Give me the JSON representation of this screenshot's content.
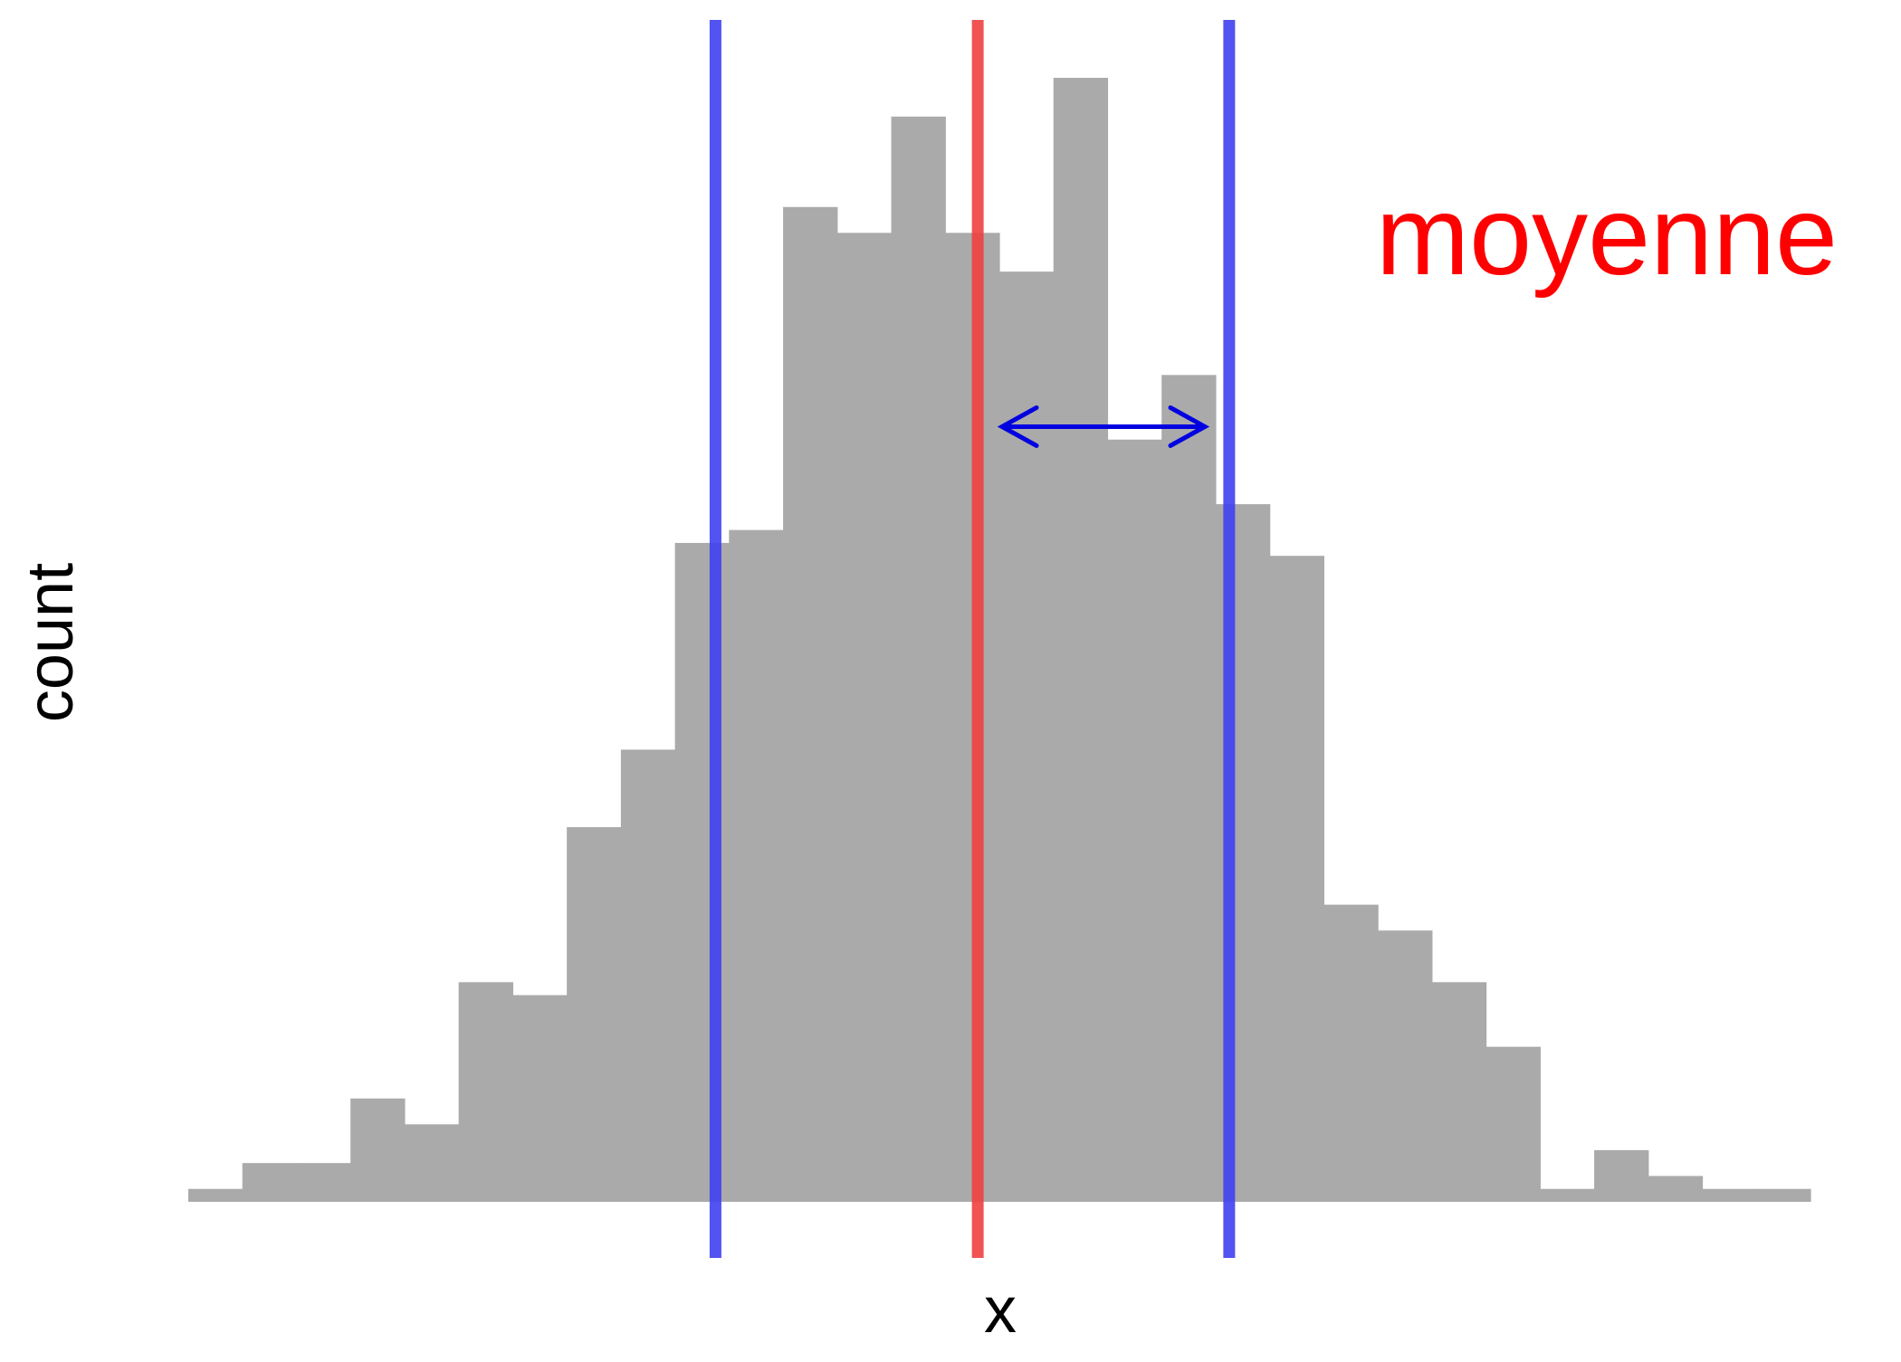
{
  "chart_data": {
    "type": "bar",
    "xlabel": "x",
    "ylabel": "count",
    "bin_edges": [
      -3.0,
      -2.8,
      -2.6,
      -2.4,
      -2.2,
      -2.0,
      -1.8,
      -1.6,
      -1.4,
      -1.2,
      -1.0,
      -0.8,
      -0.6,
      -0.4,
      -0.2,
      0.0,
      0.2,
      0.4,
      0.6,
      0.8,
      1.0,
      1.2,
      1.4,
      1.6,
      1.8,
      2.0,
      2.2,
      2.4,
      2.6,
      2.8,
      3.0
    ],
    "counts": [
      1,
      3,
      3,
      8,
      6,
      17,
      16,
      29,
      35,
      51,
      52,
      77,
      75,
      84,
      75,
      72,
      87,
      59,
      64,
      54,
      50,
      23,
      21,
      17,
      12,
      1,
      4,
      2,
      1,
      1
    ],
    "xlim": [
      -3.0,
      3.0
    ],
    "ylim": [
      0,
      87
    ],
    "grid": false,
    "bar_color": "#aaaaaa",
    "reference_lines": [
      {
        "x": -1.05,
        "color": "#4040f0"
      },
      {
        "x": -0.08,
        "color": "#f04040"
      },
      {
        "x": 0.85,
        "color": "#4040f0"
      }
    ],
    "arrow": {
      "x_start": 0.01,
      "x_end": 0.76,
      "y": 60,
      "color": "#0000e0"
    },
    "annotations": [
      {
        "text": "moyenne",
        "color": "#ff0000"
      }
    ]
  }
}
